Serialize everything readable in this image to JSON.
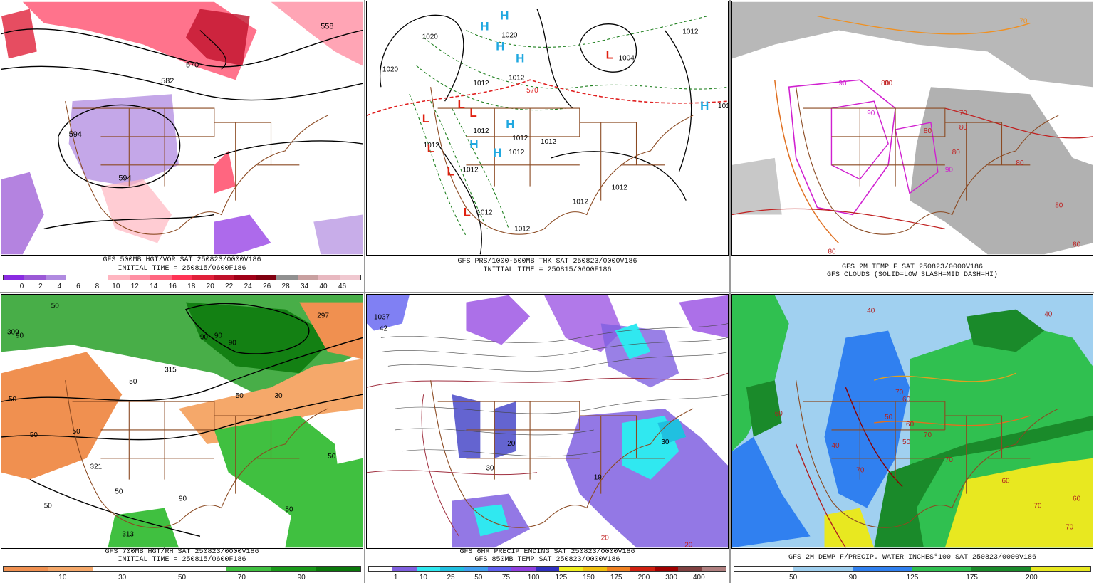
{
  "panels": [
    {
      "id": "p1",
      "caption_line1": "GFS 500MB HGT/VOR SAT 250823/0000V186",
      "caption_line2": "INITIAL TIME = 250815/0600F186",
      "colorbar_colors": [
        "#8a2be2",
        "#9b59d6",
        "#b08ae0",
        "#ffffff",
        "#ffffff",
        "#ffb6c1",
        "#ff8fa3",
        "#ff6680",
        "#ff3355",
        "#e0203a",
        "#c0102a",
        "#a00018",
        "#800010",
        "#909090",
        "#c8a0a0",
        "#e8b8c0",
        "#f0c8d0"
      ],
      "colorbar_labels": [
        "0",
        "2",
        "4",
        "6",
        "8",
        "10",
        "12",
        "14",
        "16",
        "18",
        "20",
        "22",
        "24",
        "26",
        "28",
        "34",
        "40",
        "46"
      ],
      "contour_labels": [
        "558",
        "570",
        "582",
        "594",
        "594"
      ]
    },
    {
      "id": "p2",
      "caption_line1": "GFS PRS/1000-500MB THK SAT 250823/0000V186",
      "caption_line2": "INITIAL TIME = 250815/0600F186",
      "contour_labels": [
        "1020",
        "1020",
        "1020",
        "1012",
        "1012",
        "1012",
        "1012",
        "1012",
        "1012",
        "1012",
        "1004",
        "1012",
        "1012",
        "570",
        "1012",
        "1012",
        "1012",
        "1012",
        "101"
      ],
      "pressure_centers": [
        "H",
        "H",
        "H",
        "H",
        "H",
        "H",
        "H",
        "H",
        "L",
        "L",
        "L",
        "L",
        "L",
        "L",
        "L"
      ]
    },
    {
      "id": "p3",
      "caption_line1": "GFS 2M TEMP F SAT 250823/0000V186",
      "caption_line2": "GFS CLOUDS (SOLID=LOW SLASH=MID DASH=HI)",
      "contour_labels": [
        "80",
        "90",
        "90",
        "70",
        "80",
        "80",
        "80",
        "80",
        "90",
        "70",
        "80",
        "80",
        "80",
        "80"
      ]
    },
    {
      "id": "p4",
      "caption_line1": "GFS 700MB HGT/RH SAT 250823/0000V186",
      "caption_line2": "INITIAL TIME = 250815/0600F186",
      "colorbar_colors": [
        "#f09050",
        "#f5a86a",
        "#ffffff",
        "#ffffff",
        "#ffffff",
        "#40c040",
        "#1a9a1a",
        "#0a780a"
      ],
      "colorbar_labels": [
        "10",
        "30",
        "50",
        "70",
        "90"
      ],
      "contour_labels": [
        "297",
        "309",
        "50",
        "50",
        "90",
        "90",
        "315",
        "50",
        "50",
        "30",
        "321",
        "50",
        "50",
        "50",
        "50",
        "313",
        "50",
        "90",
        "90",
        "90",
        "50"
      ]
    },
    {
      "id": "p5",
      "caption_line1": "GFS 6HR PRECIP ENDING SAT 250823/0000V186",
      "caption_line2": "GFS 850MB TEMP SAT 250823/0000V186",
      "colorbar_colors": [
        "#ffffff",
        "#8060e0",
        "#30e8f0",
        "#20c0e0",
        "#40a0f0",
        "#6060f0",
        "#9040e0",
        "#3030c0",
        "#f0f020",
        "#f0c010",
        "#f08020",
        "#d02010",
        "#a00000",
        "#804040",
        "#b08080"
      ],
      "colorbar_labels": [
        "1",
        "10",
        "25",
        "50",
        "75",
        "100",
        "125",
        "150",
        "175",
        "200",
        "300",
        "400"
      ],
      "contour_labels": [
        "1037",
        "42",
        "20",
        "30",
        "19",
        "30",
        "20",
        "20"
      ]
    },
    {
      "id": "p6",
      "caption_line1": "GFS 2M DEWP F/PRECIP. WATER INCHES*100 SAT 250823/0000V186",
      "caption_line2": "",
      "colorbar_colors": [
        "#ffffff",
        "#ffffff",
        "#a0d0f0",
        "#a0d0f0",
        "#3080f0",
        "#3080f0",
        "#30c050",
        "#30c050",
        "#1a8a2a",
        "#1a8a2a",
        "#e8e820",
        "#e8e820"
      ],
      "colorbar_labels": [
        "50",
        "90",
        "125",
        "175",
        "200"
      ],
      "contour_labels": [
        "40",
        "40",
        "50",
        "50",
        "40",
        "60",
        "60",
        "70",
        "70",
        "60",
        "60",
        "70",
        "70",
        "60",
        "70",
        "70"
      ]
    }
  ]
}
